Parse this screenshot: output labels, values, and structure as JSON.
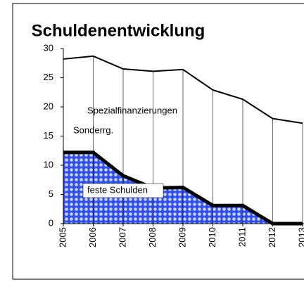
{
  "chart_data": {
    "type": "area-line",
    "title": "Schuldenentwicklung",
    "categories": [
      "2005",
      "2006",
      "2007",
      "2008",
      "2009",
      "2010",
      "2011",
      "2012",
      "2013"
    ],
    "series": [
      {
        "name": "feste Schulden",
        "color": "#2f4ff0",
        "values": [
          12.2,
          12.2,
          8.2,
          6.1,
          6.2,
          3.1,
          3.1,
          0,
          0
        ]
      },
      {
        "color": "#000000",
        "values": [
          28.2,
          28.7,
          26.5,
          26.1,
          26.4,
          22.9,
          21.3,
          18.0,
          17.2
        ]
      }
    ],
    "annotations": [
      "Spezialfinanzierungen",
      "Sonderrg."
    ],
    "ylim": [
      0,
      30
    ],
    "yticks": [
      0,
      5,
      10,
      15,
      20,
      25,
      30
    ],
    "grid": false
  }
}
